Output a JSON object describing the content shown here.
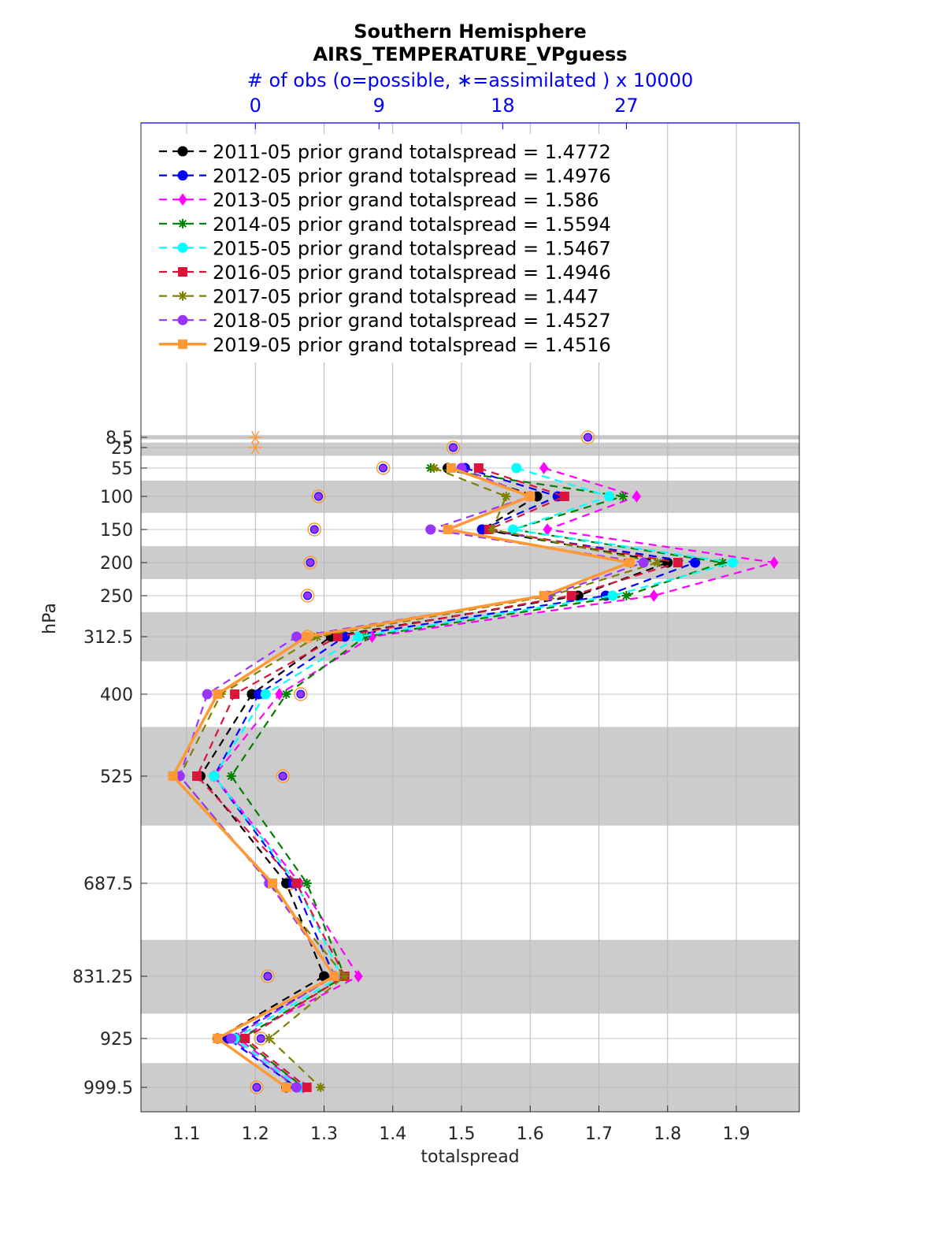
{
  "chart_data": {
    "type": "line",
    "title": "Southern Hemisphere",
    "subtitle": "AIRS_TEMPERATURE_VPguess",
    "xlabel": "totalspread",
    "ylabel": "hPa",
    "xlim": [
      1.03,
      1.99
    ],
    "x_ticks": [
      1.1,
      1.2,
      1.3,
      1.4,
      1.5,
      1.6,
      1.7,
      1.8,
      1.9
    ],
    "y_levels": [
      8.5,
      25,
      55,
      100,
      150,
      200,
      250,
      312.5,
      400,
      525,
      687.5,
      831.25,
      925,
      999.5
    ],
    "y_tick_labels": [
      "8.5",
      "25",
      "55",
      "100",
      "150",
      "200",
      "250",
      "312.5",
      "400",
      "525",
      "687.5",
      "831.25",
      "925",
      "999.5"
    ],
    "top_axis": {
      "label": "# of obs (o=possible, ∗=assimilated ) x 10000",
      "ticks": [
        "0",
        "9",
        "18",
        "27"
      ],
      "tick_values": [
        0,
        9,
        18,
        27
      ],
      "color": "#0000ff"
    },
    "grid": true,
    "legend_placement": "top-left",
    "shaded_bands_hPa": [
      [
        5,
        12
      ],
      [
        17,
        37
      ],
      [
        75,
        125
      ],
      [
        175,
        225
      ],
      [
        275,
        350
      ],
      [
        450,
        600
      ],
      [
        775,
        887.5
      ],
      [
        962.5,
        1037.5
      ]
    ],
    "series": [
      {
        "name": "2011-05 prior grand totalspread = 1.4772",
        "color": "#000000",
        "marker": "circle",
        "style": "dashed",
        "levels": [
          55,
          100,
          150,
          200,
          250,
          312.5,
          400,
          525,
          687.5,
          831.25,
          925,
          999.5
        ],
        "values": [
          1.48,
          1.61,
          1.53,
          1.8,
          1.67,
          1.31,
          1.195,
          1.12,
          1.245,
          1.3,
          1.145,
          1.245
        ]
      },
      {
        "name": "2012-05 prior grand totalspread = 1.4976",
        "color": "#0000ff",
        "marker": "circle",
        "style": "dashed",
        "levels": [
          55,
          100,
          150,
          200,
          250,
          312.5,
          400,
          525,
          687.5,
          831.25,
          925,
          999.5
        ],
        "values": [
          1.505,
          1.64,
          1.53,
          1.84,
          1.71,
          1.33,
          1.205,
          1.14,
          1.255,
          1.315,
          1.16,
          1.26
        ]
      },
      {
        "name": "2013-05 prior grand totalspread = 1.586",
        "color": "#ff00ff",
        "marker": "diamond",
        "style": "dashed",
        "levels": [
          55,
          100,
          150,
          200,
          250,
          312.5,
          400,
          525,
          687.5,
          831.25,
          925,
          999.5
        ],
        "values": [
          1.62,
          1.755,
          1.625,
          1.955,
          1.78,
          1.37,
          1.235,
          1.14,
          1.265,
          1.35,
          1.175,
          1.27
        ]
      },
      {
        "name": "2014-05 prior grand totalspread = 1.5594",
        "color": "#008000",
        "marker": "star",
        "style": "dashed",
        "levels": [
          55,
          100,
          150,
          200,
          250,
          312.5,
          400,
          525,
          687.5,
          831.25,
          925,
          999.5
        ],
        "values": [
          1.455,
          1.735,
          1.575,
          1.88,
          1.74,
          1.36,
          1.245,
          1.165,
          1.275,
          1.33,
          1.18,
          1.27
        ]
      },
      {
        "name": "2015-05 prior grand totalspread = 1.5467",
        "color": "#00ffff",
        "marker": "circle",
        "style": "dashed",
        "levels": [
          55,
          100,
          150,
          200,
          250,
          312.5,
          400,
          525,
          687.5,
          831.25,
          925,
          999.5
        ],
        "values": [
          1.58,
          1.715,
          1.575,
          1.895,
          1.72,
          1.35,
          1.215,
          1.14,
          1.26,
          1.325,
          1.17,
          1.265
        ]
      },
      {
        "name": "2016-05 prior grand totalspread = 1.4946",
        "color": "#dc143c",
        "marker": "square",
        "style": "dashed",
        "levels": [
          55,
          100,
          150,
          200,
          250,
          312.5,
          400,
          525,
          687.5,
          831.25,
          925,
          999.5
        ],
        "values": [
          1.525,
          1.65,
          1.54,
          1.815,
          1.66,
          1.32,
          1.17,
          1.115,
          1.26,
          1.33,
          1.185,
          1.275
        ]
      },
      {
        "name": "2017-05 prior grand totalspread = 1.447",
        "color": "#808000",
        "marker": "star",
        "style": "dashed",
        "levels": [
          55,
          100,
          150,
          200,
          250,
          312.5,
          400,
          525,
          687.5,
          831.25,
          925,
          999.5
        ],
        "values": [
          1.46,
          1.565,
          1.545,
          1.785,
          1.63,
          1.29,
          1.15,
          1.09,
          1.22,
          1.33,
          1.22,
          1.295
        ]
      },
      {
        "name": "2018-05 prior grand totalspread = 1.4527",
        "color": "#9933ff",
        "marker": "circle",
        "style": "dashed",
        "levels": [
          55,
          100,
          150,
          200,
          250,
          312.5,
          400,
          525,
          687.5,
          831.25,
          925,
          999.5
        ],
        "values": [
          1.5,
          1.6,
          1.455,
          1.765,
          1.625,
          1.26,
          1.13,
          1.09,
          1.22,
          1.315,
          1.165,
          1.26
        ]
      },
      {
        "name": "2019-05 prior grand totalspread = 1.4516",
        "color": "#ff9933",
        "marker": "square",
        "style": "solid",
        "levels": [
          55,
          100,
          150,
          200,
          250,
          312.5,
          400,
          525,
          687.5,
          831.25,
          925,
          999.5
        ],
        "values": [
          1.485,
          1.6,
          1.48,
          1.745,
          1.62,
          1.275,
          1.145,
          1.08,
          1.225,
          1.315,
          1.145,
          1.245
        ]
      }
    ],
    "obs_counts_x10000": {
      "levels": [
        8.5,
        25,
        55,
        100,
        150,
        200,
        250,
        312.5,
        400,
        525,
        687.5,
        831.25,
        925,
        999.5
      ],
      "possible": [
        24.2,
        14.4,
        9.3,
        4.6,
        4.3,
        4.0,
        3.8,
        3.8,
        3.3,
        2.0,
        2.5,
        0.9,
        0.4,
        0.1
      ],
      "assimilated_levels": [
        8.5,
        25
      ],
      "assimilated": [
        0,
        0
      ]
    }
  }
}
